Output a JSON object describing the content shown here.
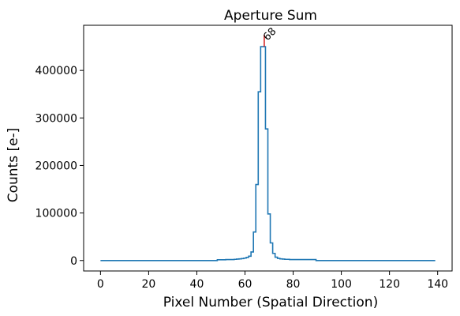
{
  "chart_data": {
    "type": "line",
    "title": "Aperture Sum",
    "xlabel": "Pixel Number (Spatial Direction)",
    "ylabel": "Counts [e-]",
    "xlim": [
      -7,
      146
    ],
    "ylim": [
      -22000,
      495000
    ],
    "x_ticks": [
      0,
      20,
      40,
      60,
      80,
      100,
      120,
      140
    ],
    "y_ticks": [
      0,
      100000,
      200000,
      300000,
      400000
    ],
    "grid": false,
    "line_color": "#1f77b4",
    "marker_color": "#d62728",
    "peak_marker": {
      "x": 68,
      "y_from": 450000,
      "y_to": 475000,
      "label": "68"
    },
    "series": [
      {
        "drawstyle": "steps-mid",
        "x": [
          0,
          48,
          49,
          55,
          56,
          57,
          58,
          59,
          60,
          61,
          62,
          63,
          64,
          65,
          66,
          67,
          68,
          69,
          70,
          71,
          72,
          73,
          74,
          75,
          76,
          77,
          78,
          79,
          80,
          89,
          90,
          139
        ],
        "y": [
          0,
          0,
          1500,
          2000,
          2500,
          3000,
          3500,
          4000,
          5000,
          6500,
          9000,
          18000,
          60000,
          160000,
          355000,
          450000,
          450000,
          277000,
          98000,
          37000,
          15000,
          7000,
          4500,
          3500,
          3000,
          2500,
          2500,
          2000,
          2000,
          2000,
          0,
          0
        ]
      }
    ]
  }
}
